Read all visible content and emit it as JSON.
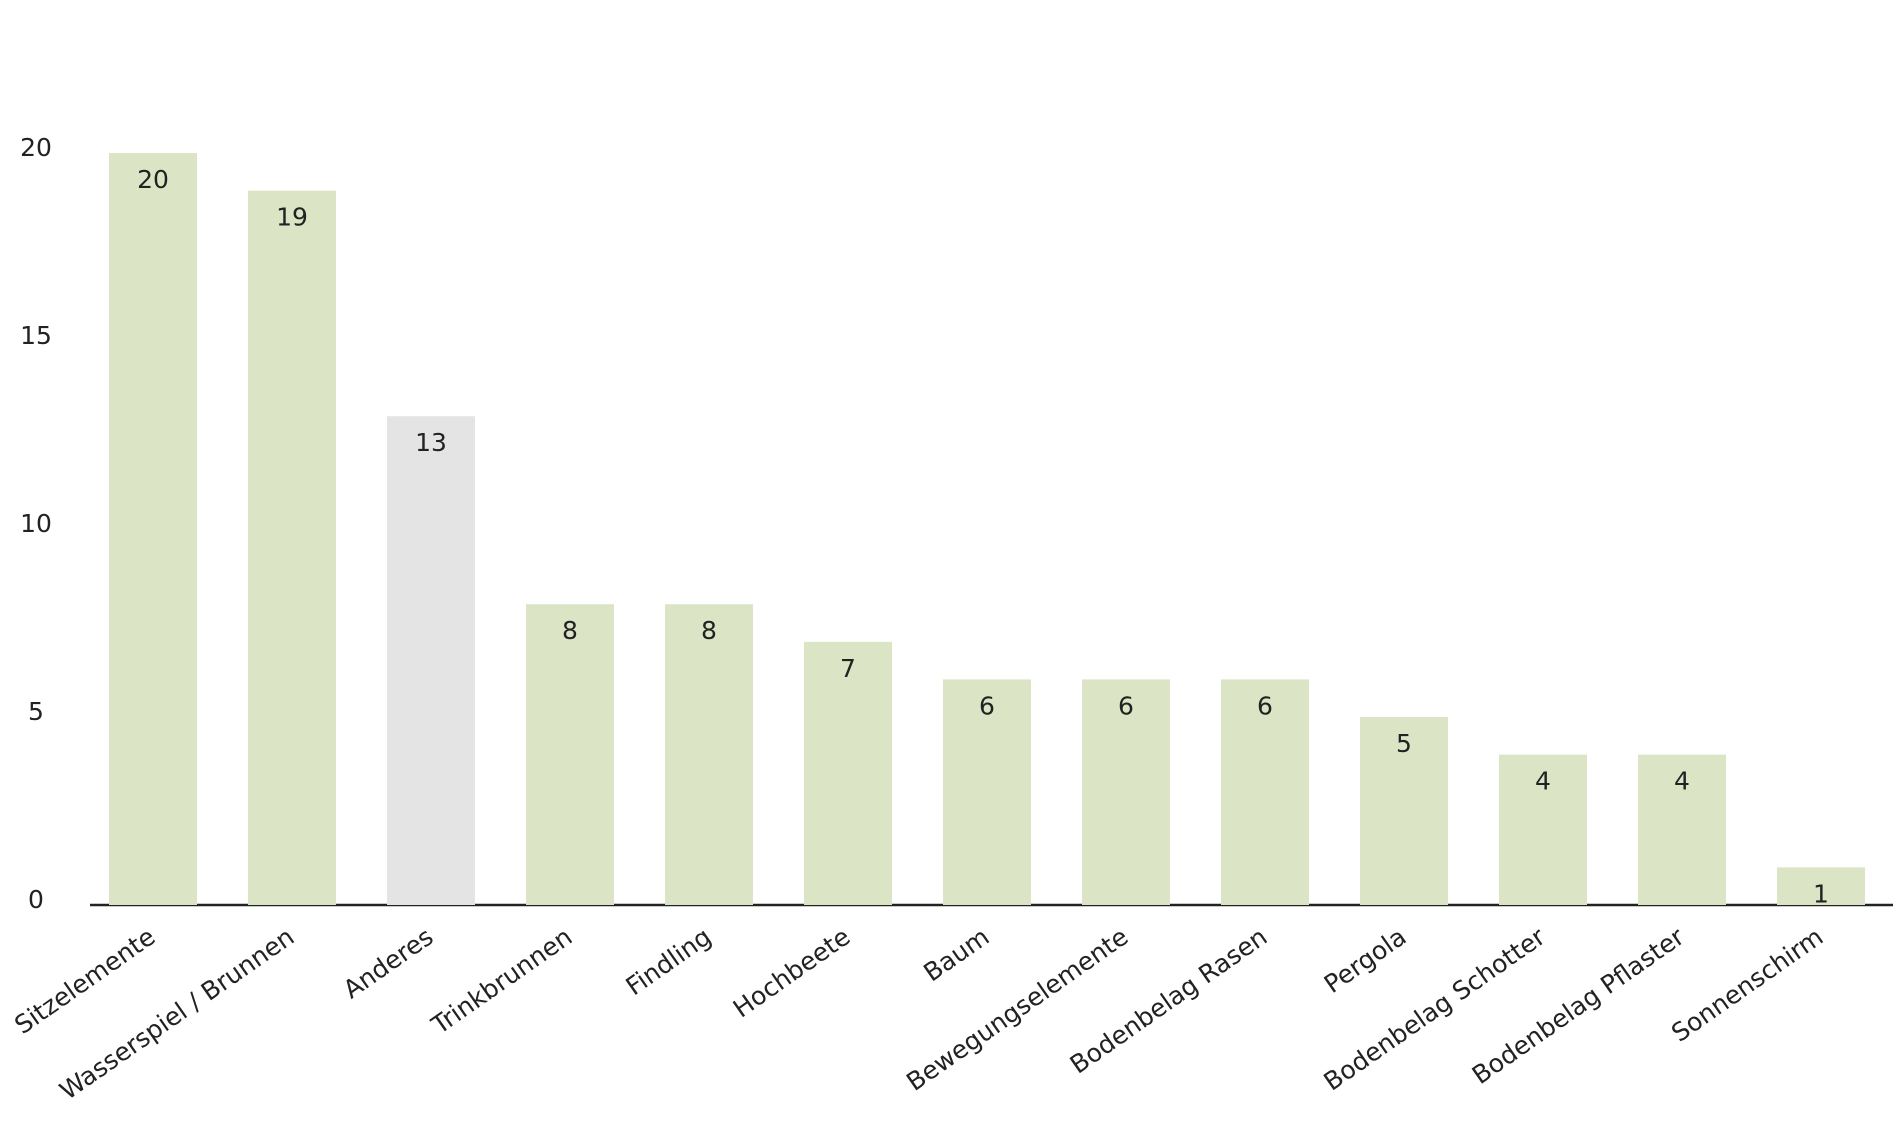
{
  "chart_data": {
    "type": "bar",
    "categories": [
      "Sitzelemente",
      "Wasserspiel / Brunnen",
      "Anderes",
      "Trinkbrunnen",
      "Findling",
      "Hochbeete",
      "Baum",
      "Bewegungselemente",
      "Bodenbelag Rasen",
      "Pergola",
      "Bodenbelag Schotter",
      "Bodenbelag Pflaster",
      "Sonnenschirm"
    ],
    "values": [
      20,
      19,
      13,
      8,
      8,
      7,
      6,
      6,
      6,
      5,
      4,
      4,
      1
    ],
    "colors": [
      "#dce4c6",
      "#dce4c6",
      "#e4e4e4",
      "#dce4c6",
      "#dce4c6",
      "#dce4c6",
      "#dce4c6",
      "#dce4c6",
      "#dce4c6",
      "#dce4c6",
      "#dce4c6",
      "#dce4c6",
      "#dce4c6"
    ],
    "ylim": [
      0,
      20
    ],
    "yticks": [
      0,
      5,
      10,
      15,
      20
    ],
    "grid": false
  }
}
